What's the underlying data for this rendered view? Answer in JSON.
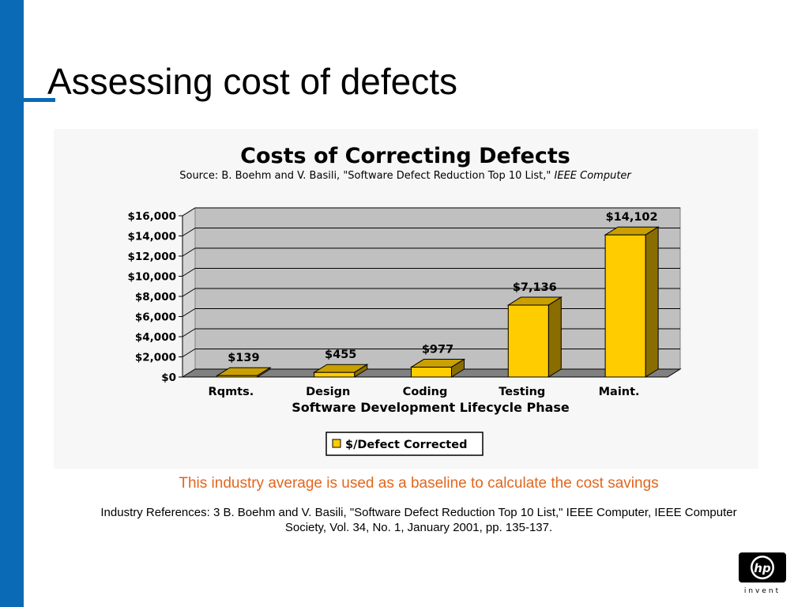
{
  "slide": {
    "title": "Assessing cost of defects",
    "caption": "This industry average is used as a baseline to calculate the cost savings",
    "reference": "Industry References: 3 B. Boehm and V. Basili, \"Software Defect Reduction Top 10 List,\" IEEE Computer, IEEE Computer Society, Vol. 34, No. 1, January 2001, pp. 135-137.",
    "logo": {
      "mark": "hp",
      "tagline": "invent"
    },
    "colors": {
      "side_bar": "#0a6ab6",
      "caption": "#e2661d"
    }
  },
  "chart_data": {
    "type": "bar",
    "title": "Costs of Correcting Defects",
    "subtitle_prefix": "Source: B. Boehm and V. Basili, \"Software Defect Reduction Top 10 List,\" ",
    "subtitle_italic": "IEEE Computer",
    "xlabel": "Software Development Lifecycle Phase",
    "ylabel": "",
    "categories": [
      "Rqmts.",
      "Design",
      "Coding",
      "Testing",
      "Maint."
    ],
    "series": [
      {
        "name": "$/Defect Corrected",
        "values": [
          139,
          455,
          977,
          7136,
          14102
        ]
      }
    ],
    "data_labels": [
      "$139",
      "$455",
      "$977",
      "$7,136",
      "$14,102"
    ],
    "yticks": [
      "$0",
      "$2,000",
      "$4,000",
      "$6,000",
      "$8,000",
      "$10,000",
      "$12,000",
      "$14,000",
      "$16,000"
    ],
    "ylim": [
      0,
      16000
    ],
    "grid": true,
    "three_d": true,
    "legend_position": "bottom",
    "colors": {
      "bar_front": "#ffcc00",
      "bar_top": "#c9a000",
      "bar_side": "#8a6d00",
      "plot_wall": "#c0c0c0",
      "plot_floor": "#808080"
    }
  }
}
